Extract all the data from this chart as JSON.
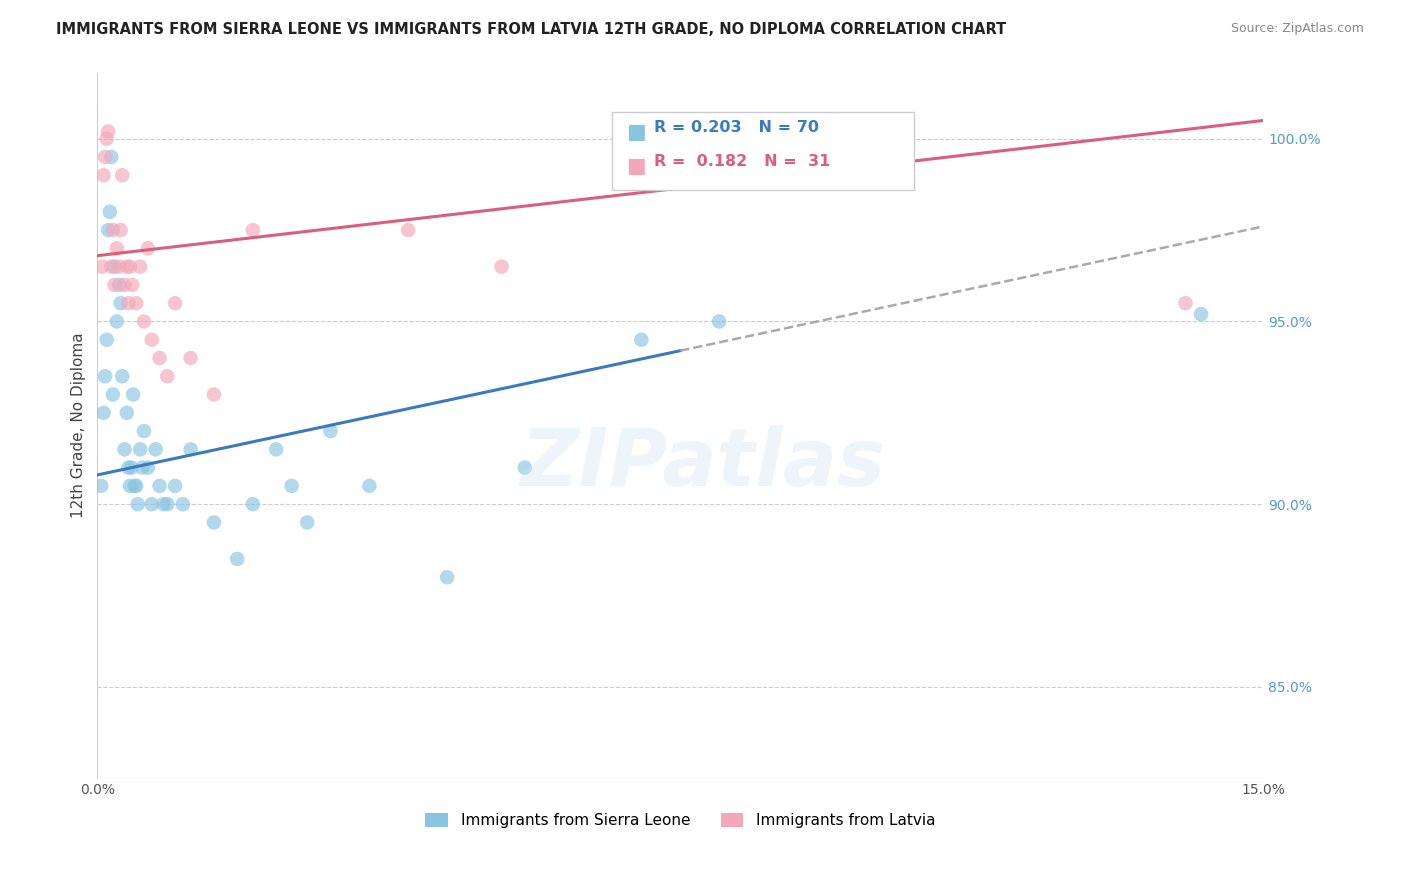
{
  "title": "IMMIGRANTS FROM SIERRA LEONE VS IMMIGRANTS FROM LATVIA 12TH GRADE, NO DIPLOMA CORRELATION CHART",
  "source": "Source: ZipAtlas.com",
  "ylabel": "12th Grade, No Diploma",
  "yticks": [
    85.0,
    90.0,
    95.0,
    100.0
  ],
  "ytick_labels": [
    "85.0%",
    "90.0%",
    "95.0%",
    "100.0%"
  ],
  "legend_label_blue": "Immigrants from Sierra Leone",
  "legend_label_pink": "Immigrants from Latvia",
  "xlim": [
    0.0,
    15.0
  ],
  "ylim": [
    82.5,
    101.8
  ],
  "blue_color": "#89c4e1",
  "pink_color": "#f4a7b9",
  "blue_line_color": "#3a7abf",
  "pink_line_color": "#d95f7f",
  "gray_dash_color": "#aaaaaa",
  "blue_scatter_x": [
    0.05,
    0.08,
    0.1,
    0.12,
    0.14,
    0.16,
    0.18,
    0.2,
    0.22,
    0.25,
    0.28,
    0.3,
    0.32,
    0.35,
    0.38,
    0.4,
    0.42,
    0.44,
    0.46,
    0.48,
    0.5,
    0.52,
    0.55,
    0.58,
    0.6,
    0.65,
    0.7,
    0.75,
    0.8,
    0.85,
    0.9,
    1.0,
    1.1,
    1.2,
    1.5,
    1.8,
    2.0,
    2.3,
    2.5,
    2.7,
    3.0,
    3.5,
    4.5,
    5.5,
    7.0,
    8.0,
    14.2
  ],
  "blue_scatter_y": [
    90.5,
    92.5,
    93.5,
    94.5,
    97.5,
    98.0,
    99.5,
    93.0,
    96.5,
    95.0,
    96.0,
    95.5,
    93.5,
    91.5,
    92.5,
    91.0,
    90.5,
    91.0,
    93.0,
    90.5,
    90.5,
    90.0,
    91.5,
    91.0,
    92.0,
    91.0,
    90.0,
    91.5,
    90.5,
    90.0,
    90.0,
    90.5,
    90.0,
    91.5,
    89.5,
    88.5,
    90.0,
    91.5,
    90.5,
    89.5,
    92.0,
    90.5,
    88.0,
    91.0,
    94.5,
    95.0,
    95.2
  ],
  "pink_scatter_x": [
    0.06,
    0.08,
    0.1,
    0.12,
    0.14,
    0.18,
    0.2,
    0.22,
    0.25,
    0.28,
    0.3,
    0.32,
    0.35,
    0.38,
    0.4,
    0.42,
    0.45,
    0.5,
    0.55,
    0.6,
    0.65,
    0.7,
    0.8,
    0.9,
    1.0,
    1.2,
    1.5,
    2.0,
    4.0,
    5.2,
    14.0
  ],
  "pink_scatter_y": [
    96.5,
    99.0,
    99.5,
    100.0,
    100.2,
    96.5,
    97.5,
    96.0,
    97.0,
    96.5,
    97.5,
    99.0,
    96.0,
    96.5,
    95.5,
    96.5,
    96.0,
    95.5,
    96.5,
    95.0,
    97.0,
    94.5,
    94.0,
    93.5,
    95.5,
    94.0,
    93.0,
    97.5,
    97.5,
    96.5,
    95.5
  ],
  "blue_line_x0": 0.0,
  "blue_line_x1": 7.5,
  "blue_line_y0": 90.8,
  "blue_line_y1": 94.2,
  "blue_dash_x0": 7.5,
  "blue_dash_x1": 15.0,
  "blue_dash_y0": 94.2,
  "blue_dash_y1": 97.6,
  "pink_line_x0": 0.0,
  "pink_line_x1": 15.0,
  "pink_line_y0": 96.8,
  "pink_line_y1": 100.5
}
